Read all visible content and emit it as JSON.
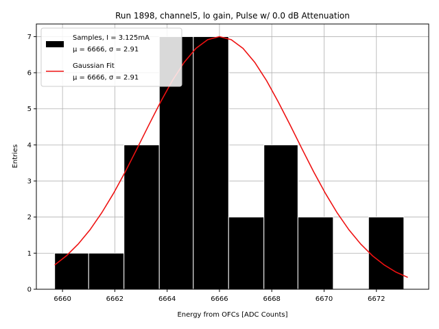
{
  "chart_data": {
    "type": "bar",
    "title": "Run 1898, channel5, lo gain, Pulse w/ 0.0 dB Attenuation",
    "xlabel": "Energy from OFCs [ADC Counts]",
    "ylabel": "Entries",
    "xlim": [
      6659.0,
      6674.0
    ],
    "ylim": [
      0,
      7.35
    ],
    "xticks": [
      6660,
      6662,
      6664,
      6666,
      6668,
      6670,
      6672
    ],
    "yticks": [
      0,
      1,
      2,
      3,
      4,
      5,
      6,
      7
    ],
    "grid": true,
    "legend_position": "top-left",
    "histogram": {
      "name": "Samples, I = 3.125mA",
      "stats": "μ = 6666, σ = 2.91",
      "color": "#000000",
      "bins": [
        {
          "left": 6659.7,
          "right": 6661.0,
          "count": 1
        },
        {
          "left": 6661.0,
          "right": 6662.35,
          "count": 1
        },
        {
          "left": 6662.35,
          "right": 6663.7,
          "count": 4
        },
        {
          "left": 6663.7,
          "right": 6665.0,
          "count": 7
        },
        {
          "left": 6665.0,
          "right": 6666.35,
          "count": 7
        },
        {
          "left": 6666.35,
          "right": 6667.7,
          "count": 2
        },
        {
          "left": 6667.7,
          "right": 6669.0,
          "count": 4
        },
        {
          "left": 6669.0,
          "right": 6670.35,
          "count": 2
        },
        {
          "left": 6670.35,
          "right": 6671.7,
          "count": 0
        },
        {
          "left": 6671.7,
          "right": 6673.05,
          "count": 2
        }
      ]
    },
    "fit": {
      "name": "Gaussian Fit",
      "stats": "μ = 6666, σ = 2.91",
      "color": "#ee1111",
      "mu": 6666.0,
      "sigma": 2.91,
      "amplitude": 7.0,
      "x_range": [
        6659.7,
        6673.2
      ]
    }
  }
}
